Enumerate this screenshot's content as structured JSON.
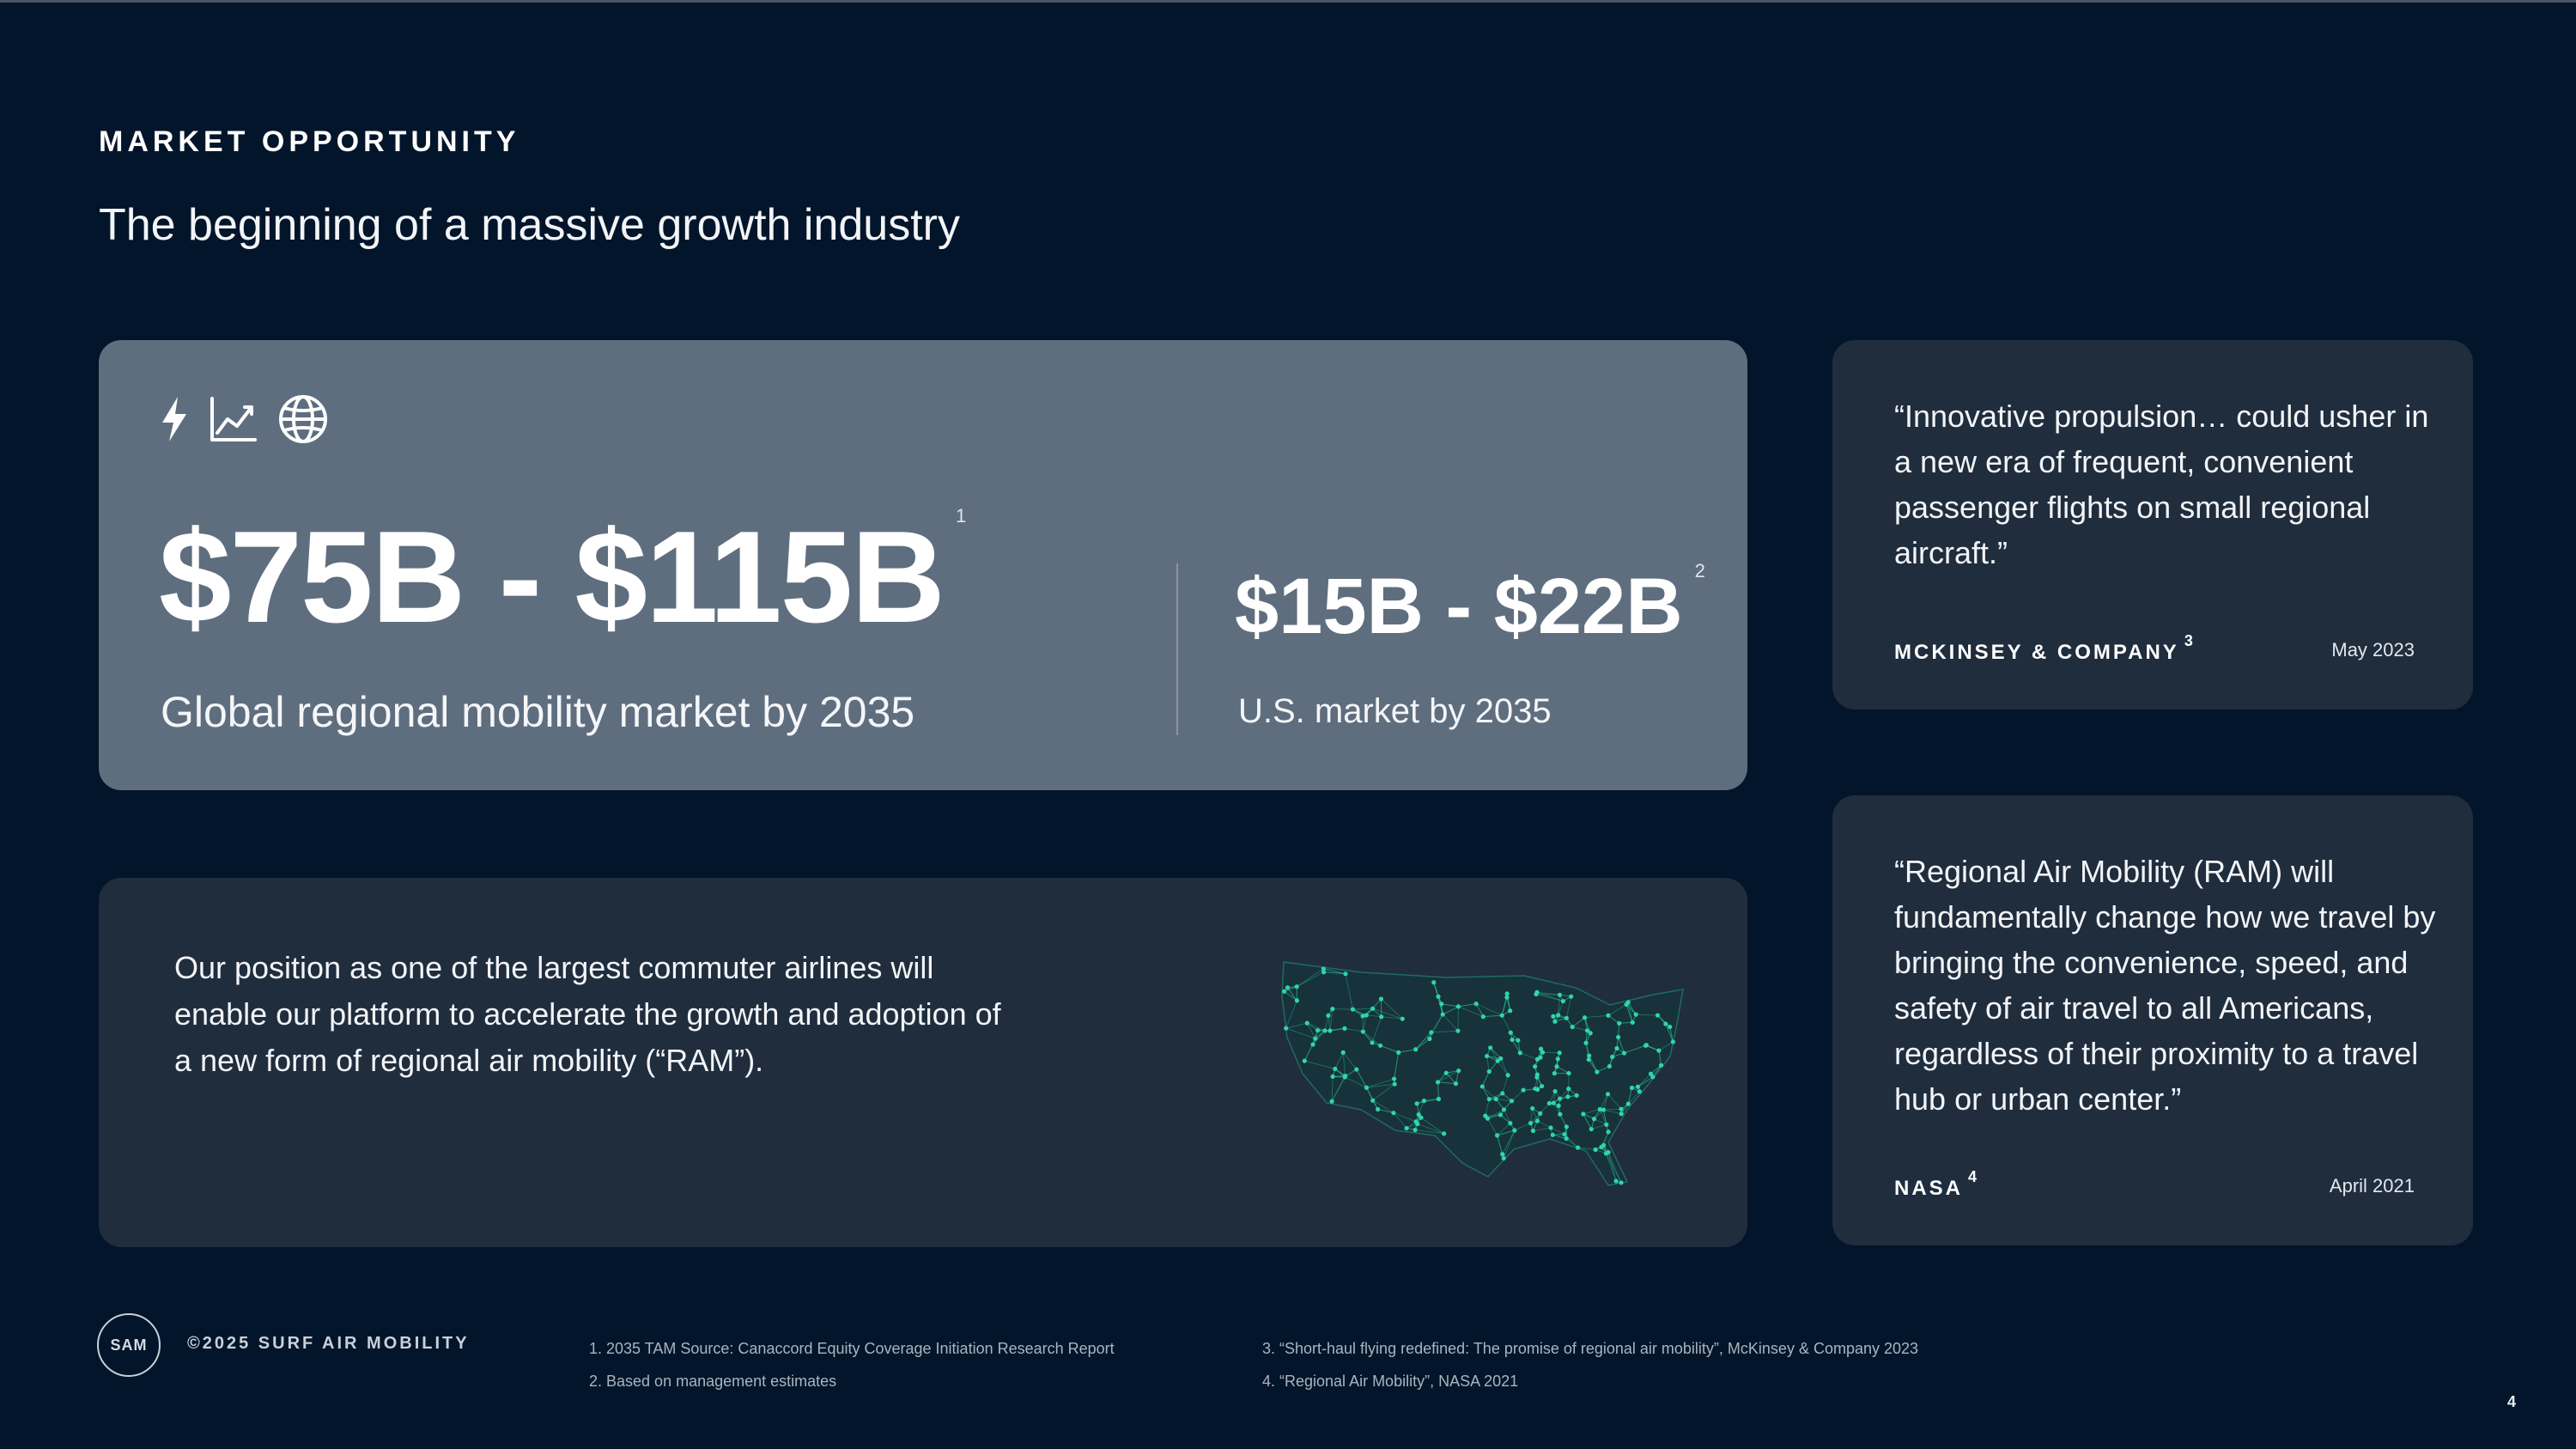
{
  "header": {
    "eyebrow": "MARKET OPPORTUNITY",
    "title": "The beginning of a massive growth industry"
  },
  "market": {
    "icons": [
      "lightning-icon",
      "trend-chart-icon",
      "globe-icon"
    ],
    "global_value": "$75B - $115B",
    "global_ref": "1",
    "global_caption": "Global regional mobility market by 2035",
    "us_value": "$15B - $22B",
    "us_ref": "2",
    "us_caption": "U.S. market by 2035"
  },
  "position": {
    "text": "Our position as one of the largest commuter airlines will enable our platform to accelerate the growth and adoption of a new form of regional air mobility (“RAM”).",
    "map_icon": "us-network-map"
  },
  "quotes": [
    {
      "text": "“Innovative propulsion… could usher in a new era of frequent, convenient passenger flights on small regional aircraft.”",
      "source": "MCKINSEY & COMPANY",
      "ref": "3",
      "date": "May 2023"
    },
    {
      "text": "“Regional Air Mobility (RAM) will fundamentally change how we travel by bringing the convenience, speed, and safety of air travel to all Americans, regardless of their proximity to a travel hub or urban center.”",
      "source": "NASA",
      "ref": "4",
      "date": "April 2021"
    }
  ],
  "footer": {
    "logo_text": "SAM",
    "copyright": "©2025 SURF AIR MOBILITY",
    "notes_left": [
      "1. 2035 TAM Source: Canaccord Equity Coverage Initiation Research Report",
      "2. Based on management estimates"
    ],
    "notes_right": [
      "3. “Short-haul flying redefined: The promise of regional air mobility”, McKinsey & Company 2023",
      "4. “Regional Air Mobility”, NASA 2021"
    ],
    "page_number": "4"
  },
  "colors": {
    "background": "#03152a",
    "market_card": "#5f6e7e",
    "dark_card": "#1f2d3d",
    "map_accent": "#2fd6a8"
  }
}
